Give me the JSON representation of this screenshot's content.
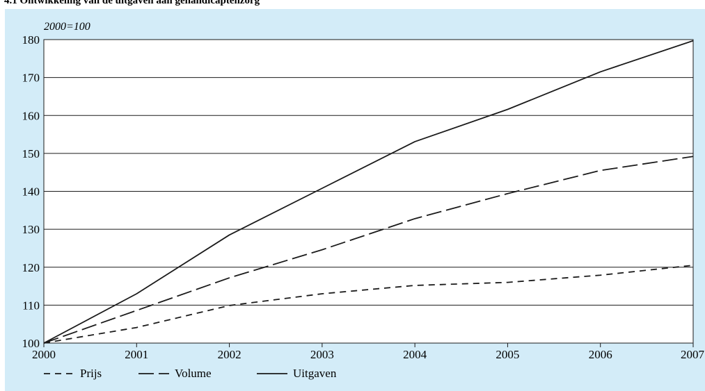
{
  "colors": {
    "panel_background": "#d3ecf8",
    "plot_background": "#ffffff",
    "line": "#1a1a1a",
    "grid": "#1a1a1a"
  },
  "chart_data": {
    "type": "line",
    "title": "4.1 Ontwikkeling van de uitgaven aan gehandicaptenzorg",
    "unit_label": "2000=100",
    "xlabel": "",
    "ylabel": "",
    "x": [
      "2000",
      "2001",
      "2002",
      "2003",
      "2004",
      "2005",
      "2006",
      "2007"
    ],
    "xlim": [
      2000,
      2007
    ],
    "ylim": [
      100,
      180
    ],
    "yticks": [
      100,
      110,
      120,
      130,
      140,
      150,
      160,
      170,
      180
    ],
    "grid": true,
    "legend_position": "bottom-left",
    "series": [
      {
        "name": "Prijs",
        "line_style": "short-dash",
        "values": [
          100,
          104.1,
          109.9,
          113.0,
          115.2,
          116.0,
          117.9,
          120.5
        ]
      },
      {
        "name": "Volume",
        "line_style": "long-dash",
        "values": [
          100,
          108.6,
          117.2,
          124.6,
          132.8,
          139.4,
          145.5,
          149.2
        ]
      },
      {
        "name": "Uitgaven",
        "line_style": "solid",
        "values": [
          100,
          113.0,
          128.5,
          140.8,
          153.1,
          161.6,
          171.5,
          179.7
        ]
      }
    ]
  }
}
